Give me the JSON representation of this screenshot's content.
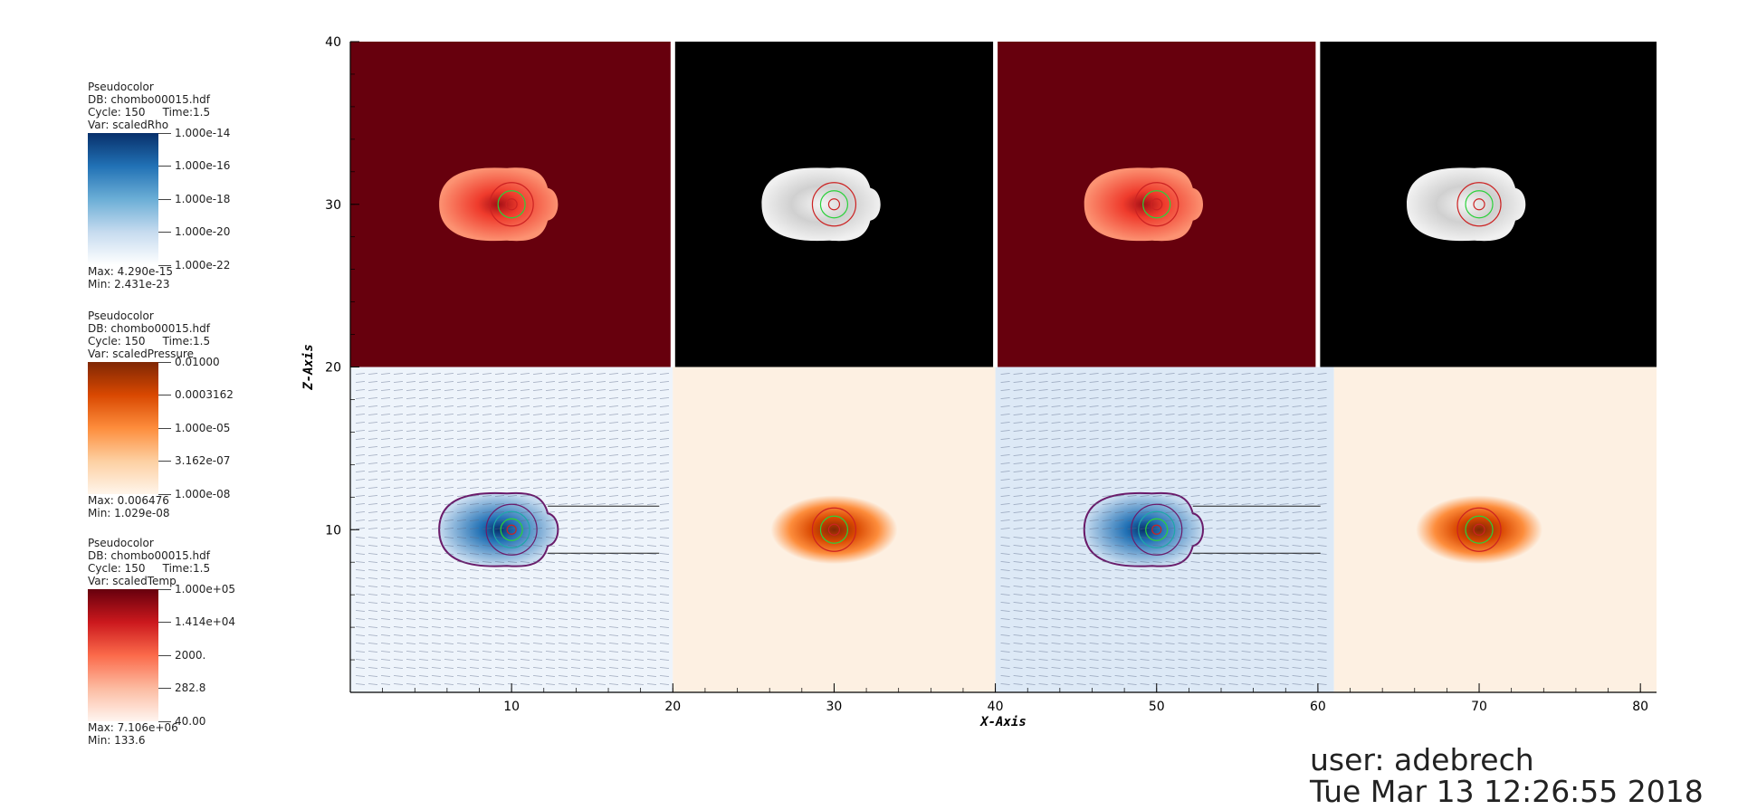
{
  "legends": [
    {
      "plot_type": "Pseudocolor",
      "db": "DB: chombo00015.hdf",
      "cycle": "Cycle: 150",
      "time": "Time:1.5",
      "var": "Var: scaledRho",
      "ticks": [
        "1.000e-14",
        "1.000e-16",
        "1.000e-18",
        "1.000e-20",
        "1.000e-22"
      ],
      "max": "Max: 4.290e-15",
      "min": "Min: 2.431e-23",
      "colormap": [
        "#08306b",
        "#2171b5",
        "#6baed6",
        "#c6dbef",
        "#ffffff"
      ]
    },
    {
      "plot_type": "Pseudocolor",
      "db": "DB: chombo00015.hdf",
      "cycle": "Cycle: 150",
      "time": "Time:1.5",
      "var": "Var: scaledPressure",
      "ticks": [
        "0.01000",
        "0.0003162",
        "1.000e-05",
        "3.162e-07",
        "1.000e-08"
      ],
      "max": "Max: 0.006476",
      "min": "Min: 1.029e-08",
      "colormap": [
        "#7f2704",
        "#d94801",
        "#fd8d3c",
        "#fdd0a2",
        "#fff5eb"
      ]
    },
    {
      "plot_type": "Pseudocolor",
      "db": "DB: chombo00015.hdf",
      "cycle": "Cycle: 150",
      "time": "Time:1.5",
      "var": "Var: scaledTemp",
      "ticks": [
        "1.000e+05",
        "1.414e+04",
        "2000.",
        "282.8",
        "40.00"
      ],
      "max": "Max: 7.106e+06",
      "min": "Min: 133.6",
      "colormap": [
        "#67000d",
        "#cb181d",
        "#fb6a4a",
        "#fcbba1",
        "#fff5f0"
      ]
    }
  ],
  "chart_data": {
    "type": "heatmap",
    "xlabel": "X-Axis",
    "ylabel": "Z-Axis",
    "xlim": [
      0,
      81
    ],
    "ylim": [
      0,
      40
    ],
    "xticks": [
      10,
      20,
      30,
      40,
      50,
      60,
      70,
      80
    ],
    "yticks": [
      10,
      20,
      30,
      40
    ],
    "panels": [
      {
        "row": "top",
        "x": [
          0,
          20
        ],
        "y": [
          20,
          40
        ],
        "var": "scaledTemp",
        "bg": "#67000d",
        "blob_center": [
          10,
          30
        ]
      },
      {
        "row": "top",
        "x": [
          20,
          40
        ],
        "y": [
          20,
          40
        ],
        "var": "grayscale",
        "bg": "#000000",
        "blob_center": [
          30,
          30
        ]
      },
      {
        "row": "top",
        "x": [
          40,
          60
        ],
        "y": [
          20,
          40
        ],
        "var": "scaledTemp",
        "bg": "#67000d",
        "blob_center": [
          50,
          30
        ]
      },
      {
        "row": "top",
        "x": [
          60,
          81
        ],
        "y": [
          20,
          40
        ],
        "var": "grayscale",
        "bg": "#000000",
        "blob_center": [
          70,
          30
        ]
      },
      {
        "row": "bottom",
        "x": [
          0,
          20
        ],
        "y": [
          0,
          20
        ],
        "var": "scaledRho",
        "bg": "#eef4fb",
        "blob_center": [
          10,
          10
        ],
        "vectors": true
      },
      {
        "row": "bottom",
        "x": [
          20,
          40
        ],
        "y": [
          0,
          20
        ],
        "var": "scaledPressure",
        "bg": "#fdf0e2",
        "blob_center": [
          30,
          10
        ]
      },
      {
        "row": "bottom",
        "x": [
          40,
          61
        ],
        "y": [
          0,
          20
        ],
        "var": "scaledRho",
        "bg": "#dde9f6",
        "blob_center": [
          50,
          10
        ],
        "vectors": true
      },
      {
        "row": "bottom",
        "x": [
          61,
          81
        ],
        "y": [
          0,
          20
        ],
        "var": "scaledPressure",
        "bg": "#fdf0e2",
        "blob_center": [
          70,
          10
        ]
      }
    ]
  },
  "stamp": {
    "user": "user: adebrech",
    "date": "Tue Mar 13 12:26:55 2018"
  }
}
